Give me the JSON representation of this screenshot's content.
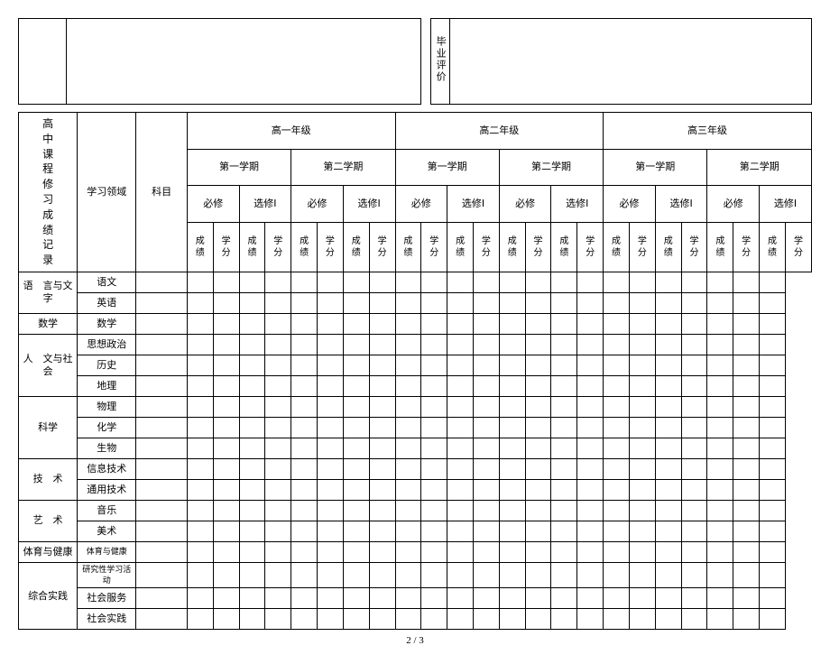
{
  "top": {
    "eval_label": "毕业评价"
  },
  "side_label": "高中课程修习成绩记录",
  "headers": {
    "domain": "学习领域",
    "subject": "科目",
    "grades": [
      "高一年级",
      "高二年级",
      "高三年级"
    ],
    "semesters": [
      "第一学期",
      "第二学期"
    ],
    "req": "必修",
    "elec": "选修Ⅰ",
    "score": "成绩",
    "credit": "学分"
  },
  "domains": [
    {
      "name": "语　言与文字",
      "subjects": [
        "语文",
        "英语"
      ]
    },
    {
      "name": "数学",
      "subjects": [
        "数学"
      ]
    },
    {
      "name": "人　文与社会",
      "subjects": [
        "思想政治",
        "历史",
        "地理"
      ]
    },
    {
      "name": "科学",
      "subjects": [
        "物理",
        "化学",
        "生物"
      ]
    },
    {
      "name": "技　术",
      "subjects": [
        "信息技术",
        "通用技术"
      ]
    },
    {
      "name": "艺　术",
      "subjects": [
        "音乐",
        "美术"
      ]
    },
    {
      "name": "体育与健康",
      "subjects": [
        "体育与健康"
      ]
    },
    {
      "name": "综合实践",
      "subjects": [
        "研究性学习活动",
        "社会服务",
        "社会实践"
      ]
    }
  ],
  "footer": "2 / 3"
}
